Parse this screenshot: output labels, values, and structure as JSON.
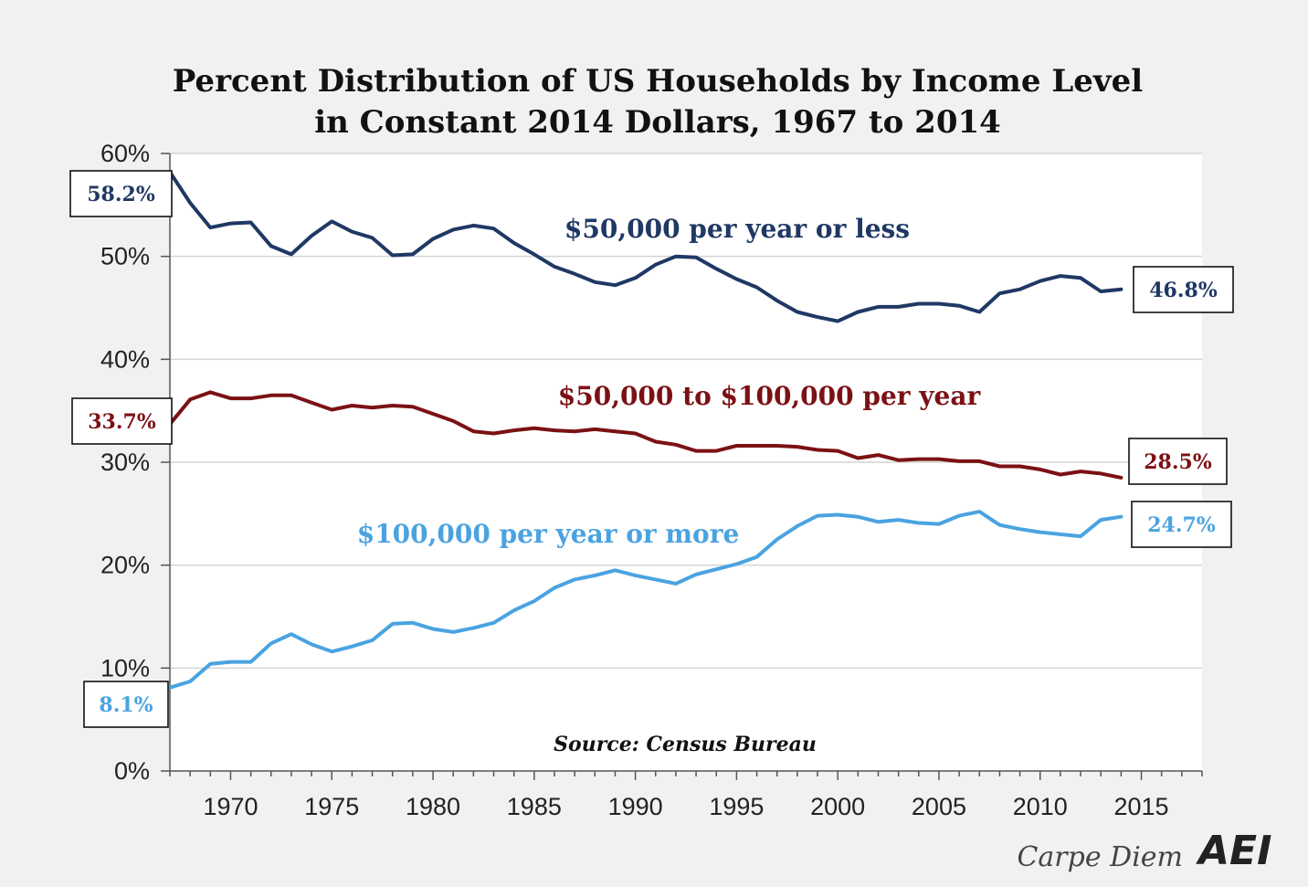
{
  "chart_data": {
    "type": "line",
    "title_line1": "Percent Distribution of US Households by Income Level",
    "title_line2": "in Constant 2014 Dollars, 1967 to 2014",
    "source": "Source: Census Bureau",
    "xlim": [
      1967,
      2018
    ],
    "ylim": [
      0,
      60
    ],
    "x_ticks": [
      1970,
      1975,
      1980,
      1985,
      1990,
      1995,
      2000,
      2005,
      2010,
      2015
    ],
    "y_ticks": [
      0,
      10,
      20,
      30,
      40,
      50,
      60
    ],
    "y_tick_labels": [
      "0%",
      "10%",
      "20%",
      "30%",
      "40%",
      "50%",
      "60%"
    ],
    "grid": true,
    "x": [
      1967,
      1968,
      1969,
      1970,
      1971,
      1972,
      1973,
      1974,
      1975,
      1976,
      1977,
      1978,
      1979,
      1980,
      1981,
      1982,
      1983,
      1984,
      1985,
      1986,
      1987,
      1988,
      1989,
      1990,
      1991,
      1992,
      1993,
      1994,
      1995,
      1996,
      1997,
      1998,
      1999,
      2000,
      2001,
      2002,
      2003,
      2004,
      2005,
      2006,
      2007,
      2008,
      2009,
      2010,
      2011,
      2012,
      2013,
      2014
    ],
    "series": [
      {
        "name": "$50,000 per year or less",
        "color": "#1f3864",
        "start_label": "58.2%",
        "end_label": "46.8%",
        "values": [
          58.2,
          55.2,
          52.8,
          53.2,
          53.3,
          51.0,
          50.2,
          52.0,
          53.4,
          52.4,
          51.8,
          50.1,
          50.2,
          51.7,
          52.6,
          53.0,
          52.7,
          51.3,
          50.2,
          49.0,
          48.3,
          47.5,
          47.2,
          47.9,
          49.2,
          50.0,
          49.9,
          48.8,
          47.8,
          47.0,
          45.7,
          44.6,
          44.1,
          43.7,
          44.6,
          45.1,
          45.1,
          45.4,
          45.4,
          45.2,
          44.6,
          46.4,
          46.8,
          47.6,
          48.1,
          47.9,
          46.6,
          46.8
        ]
      },
      {
        "name": "$50,000 to $100,000 per year",
        "color": "#7b1114",
        "start_label": "33.7%",
        "end_label": "28.5%",
        "values": [
          33.7,
          36.1,
          36.8,
          36.2,
          36.2,
          36.5,
          36.5,
          35.8,
          35.1,
          35.5,
          35.3,
          35.5,
          35.4,
          34.7,
          34.0,
          33.0,
          32.8,
          33.1,
          33.3,
          33.1,
          33.0,
          33.2,
          33.0,
          32.8,
          32.0,
          31.7,
          31.1,
          31.1,
          31.6,
          31.6,
          31.6,
          31.5,
          31.2,
          31.1,
          30.4,
          30.7,
          30.2,
          30.3,
          30.3,
          30.1,
          30.1,
          29.6,
          29.6,
          29.3,
          28.8,
          29.1,
          28.9,
          28.5
        ]
      },
      {
        "name": "$100,000 per year or more",
        "color": "#4aa3e0",
        "start_label": "8.1%",
        "end_label": "24.7%",
        "values": [
          8.1,
          8.7,
          10.4,
          10.6,
          10.6,
          12.4,
          13.3,
          12.3,
          11.6,
          12.1,
          12.7,
          14.3,
          14.4,
          13.8,
          13.5,
          13.9,
          14.4,
          15.6,
          16.5,
          17.8,
          18.6,
          19.0,
          19.5,
          19.0,
          18.6,
          18.2,
          19.1,
          19.6,
          20.1,
          20.8,
          22.5,
          23.8,
          24.8,
          24.9,
          24.7,
          24.2,
          24.4,
          24.1,
          24.0,
          24.8,
          25.2,
          23.9,
          23.5,
          23.2,
          23.0,
          22.8,
          24.4,
          24.7
        ]
      }
    ]
  },
  "brand": {
    "blog": "Carpe Diem",
    "logo": "AEI"
  }
}
